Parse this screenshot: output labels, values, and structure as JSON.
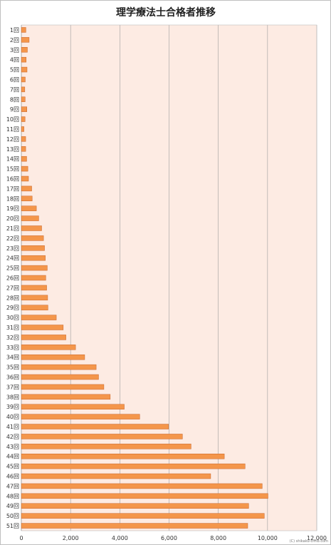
{
  "chart_data": {
    "type": "bar",
    "orientation": "horizontal",
    "title": "理学療法士合格者推移",
    "xlabel": "",
    "ylabel": "",
    "xlim": [
      0,
      12000
    ],
    "x_ticks": [
      "0",
      "2,000",
      "4,000",
      "6,000",
      "8,000",
      "10,000",
      "12,000"
    ],
    "categories": [
      "1回",
      "2回",
      "3回",
      "4回",
      "5回",
      "6回",
      "7回",
      "8回",
      "9回",
      "10回",
      "11回",
      "12回",
      "13回",
      "14回",
      "15回",
      "16回",
      "17回",
      "18回",
      "19回",
      "20回",
      "21回",
      "22回",
      "23回",
      "24回",
      "25回",
      "26回",
      "27回",
      "28回",
      "29回",
      "30回",
      "31回",
      "32回",
      "33回",
      "34回",
      "35回",
      "36回",
      "37回",
      "38回",
      "39回",
      "40回",
      "41回",
      "42回",
      "43回",
      "44回",
      "45回",
      "46回",
      "47回",
      "48回",
      "49回",
      "50回",
      "51回"
    ],
    "values": [
      183,
      316,
      245,
      195,
      231,
      158,
      140,
      153,
      224,
      150,
      106,
      175,
      176,
      215,
      264,
      290,
      420,
      439,
      610,
      705,
      824,
      900,
      941,
      973,
      1052,
      991,
      1028,
      1068,
      1080,
      1419,
      1701,
      1810,
      2201,
      2572,
      3039,
      3136,
      3352,
      3610,
      4179,
      4807,
      5980,
      6543,
      6893,
      8244,
      9087,
      7690,
      9783,
      10018,
      9233,
      9868,
      9195
    ],
    "bar_color": "#f4964b",
    "bar_edge_color": "#c8642a",
    "plot_background": "#fdebe3",
    "grid": true,
    "legend": "none",
    "credit": "(C) shikaku-cnnb.com"
  }
}
